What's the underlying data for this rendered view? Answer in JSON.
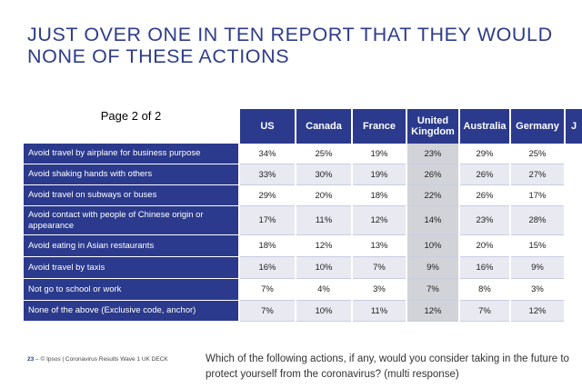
{
  "title": {
    "line1": "JUST OVER ONE IN TEN REPORT THAT THEY WOULD",
    "line2": "NONE OF THESE ACTIONS"
  },
  "table": {
    "page_label": "Page 2 of 2",
    "columns": [
      "US",
      "Canada",
      "France",
      "United Kingdom",
      "Australia",
      "Germany",
      "J"
    ],
    "rows": [
      {
        "label": "Avoid travel by airplane for business purpose",
        "values": [
          "34%",
          "25%",
          "19%",
          "23%",
          "29%",
          "25%"
        ]
      },
      {
        "label": "Avoid shaking hands with others",
        "values": [
          "33%",
          "30%",
          "19%",
          "26%",
          "26%",
          "27%"
        ]
      },
      {
        "label": "Avoid travel on subways or buses",
        "values": [
          "29%",
          "20%",
          "18%",
          "22%",
          "26%",
          "17%"
        ]
      },
      {
        "label": "Avoid contact with people of Chinese origin or appearance",
        "values": [
          "17%",
          "11%",
          "12%",
          "14%",
          "23%",
          "28%"
        ]
      },
      {
        "label": "Avoid eating in Asian restaurants",
        "values": [
          "18%",
          "12%",
          "13%",
          "10%",
          "20%",
          "15%"
        ]
      },
      {
        "label": "Avoid travel by taxis",
        "values": [
          "16%",
          "10%",
          "7%",
          "9%",
          "16%",
          "9%"
        ]
      },
      {
        "label": "Not go to school or work",
        "values": [
          "7%",
          "4%",
          "3%",
          "7%",
          "8%",
          "3%"
        ]
      },
      {
        "label": "None of the above (Exclusive code, anchor)",
        "values": [
          "7%",
          "10%",
          "11%",
          "12%",
          "7%",
          "12%"
        ]
      }
    ]
  },
  "footer": {
    "page_number": "23",
    "source": "– © Ipsos | Coronavirus Results Wave 1 UK DECK",
    "question": "Which of the following actions, if any, would you consider taking in the future to protect yourself from the coronavirus? (multi response)"
  },
  "colors": {
    "header_blue": "#2b3a8c",
    "title_blue": "#2e3c8c",
    "highlight_column": "#d2d3d8"
  }
}
